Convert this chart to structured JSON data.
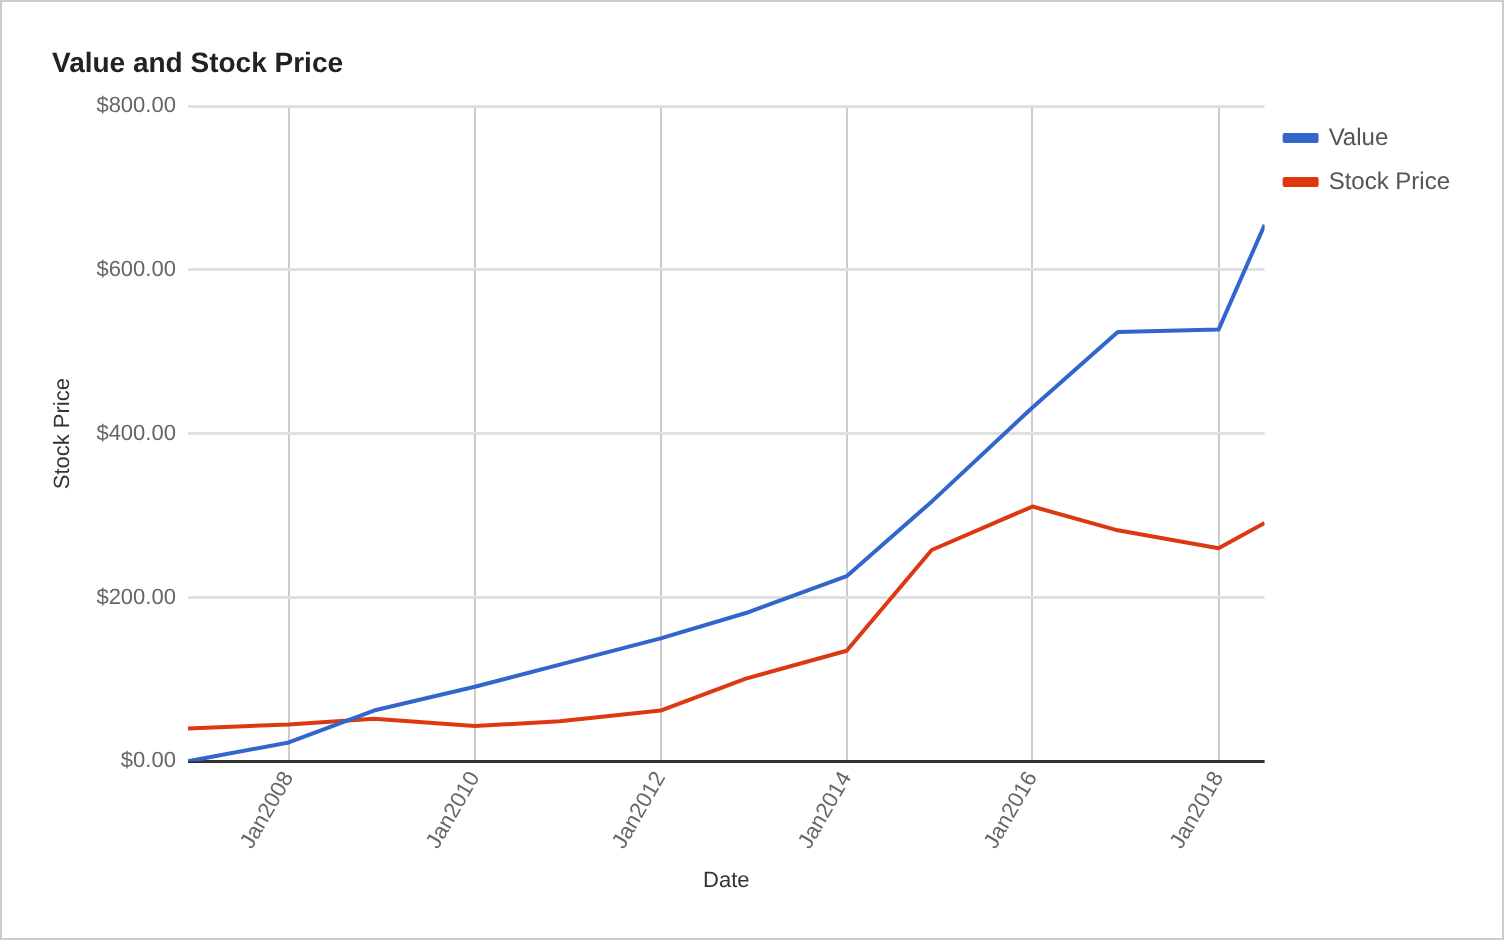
{
  "chart_data": {
    "type": "line",
    "title": "Value and Stock Price",
    "xlabel": "Date",
    "ylabel": "Stock Price",
    "x": [
      "2006-12",
      "2008-01",
      "2008-12",
      "2010-01",
      "2010-12",
      "2012-01",
      "2012-12",
      "2014-01",
      "2014-12",
      "2016-01",
      "2016-12",
      "2018-01",
      "2018-07"
    ],
    "series": [
      {
        "name": "Value",
        "color": "#3366cc",
        "values": [
          0,
          23,
          62,
          91,
          118,
          150,
          181,
          226,
          317,
          432,
          524,
          527,
          655
        ]
      },
      {
        "name": "Stock Price",
        "color": "#dc3912",
        "values": [
          40,
          45,
          52,
          43,
          49,
          62,
          101,
          135,
          258,
          311,
          282,
          260,
          291
        ]
      }
    ],
    "xlim": [
      "2006-12",
      "2018-07"
    ],
    "xticks": [
      {
        "value": "2008-01",
        "label": "Jan2008"
      },
      {
        "value": "2010-01",
        "label": "Jan2010"
      },
      {
        "value": "2012-01",
        "label": "Jan2012"
      },
      {
        "value": "2014-01",
        "label": "Jan2014"
      },
      {
        "value": "2016-01",
        "label": "Jan2016"
      },
      {
        "value": "2018-01",
        "label": "Jan2018"
      }
    ],
    "ylim": [
      0,
      800
    ],
    "yticks": [
      {
        "value": 0,
        "label": "$0.00"
      },
      {
        "value": 200,
        "label": "$200.00"
      },
      {
        "value": 400,
        "label": "$400.00"
      },
      {
        "value": 600,
        "label": "$600.00"
      },
      {
        "value": 800,
        "label": "$800.00"
      }
    ],
    "grid": true,
    "legend": "top right",
    "marker": "none",
    "line_style": "solid"
  }
}
